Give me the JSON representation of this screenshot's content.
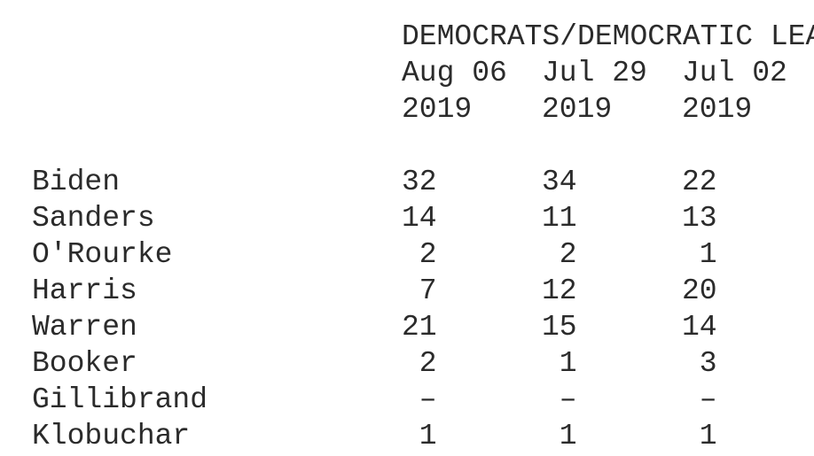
{
  "colors": {
    "text": "#2b2b2b",
    "background": "#ffffff"
  },
  "table": {
    "title": "DEMOCRATS/DEMOCRATIC LEA",
    "columns": [
      {
        "date": "Aug 06",
        "year": "2019"
      },
      {
        "date": "Jul 29",
        "year": "2019"
      },
      {
        "date": "Jul 02",
        "year": "2019"
      }
    ],
    "rows": [
      {
        "name": "Biden",
        "values": [
          "32",
          "34",
          "22"
        ]
      },
      {
        "name": "Sanders",
        "values": [
          "14",
          "11",
          "13"
        ]
      },
      {
        "name": "O'Rourke",
        "values": [
          "2",
          "2",
          "1"
        ]
      },
      {
        "name": "Harris",
        "values": [
          "7",
          "12",
          "20"
        ]
      },
      {
        "name": "Warren",
        "values": [
          "21",
          "15",
          "14"
        ]
      },
      {
        "name": "Booker",
        "values": [
          "2",
          "1",
          "3"
        ]
      },
      {
        "name": "Gillibrand",
        "values": [
          "–",
          "–",
          "–"
        ]
      },
      {
        "name": "Klobuchar",
        "values": [
          "1",
          "1",
          "1"
        ]
      }
    ]
  },
  "chart_data": {
    "type": "table",
    "title": "DEMOCRATS/DEMOCRATIC LEA",
    "categories": [
      "Aug 06 2019",
      "Jul 29 2019",
      "Jul 02 2019"
    ],
    "series": [
      {
        "name": "Biden",
        "values": [
          32,
          34,
          22
        ]
      },
      {
        "name": "Sanders",
        "values": [
          14,
          11,
          13
        ]
      },
      {
        "name": "O'Rourke",
        "values": [
          2,
          2,
          1
        ]
      },
      {
        "name": "Harris",
        "values": [
          7,
          12,
          20
        ]
      },
      {
        "name": "Warren",
        "values": [
          21,
          15,
          14
        ]
      },
      {
        "name": "Booker",
        "values": [
          2,
          1,
          3
        ]
      },
      {
        "name": "Gillibrand",
        "values": [
          null,
          null,
          null
        ]
      },
      {
        "name": "Klobuchar",
        "values": [
          1,
          1,
          1
        ]
      }
    ],
    "layout_hints": {
      "value_alignment": "right",
      "missing_value_glyph": "–",
      "font_style": "typewriter-monospace"
    }
  }
}
